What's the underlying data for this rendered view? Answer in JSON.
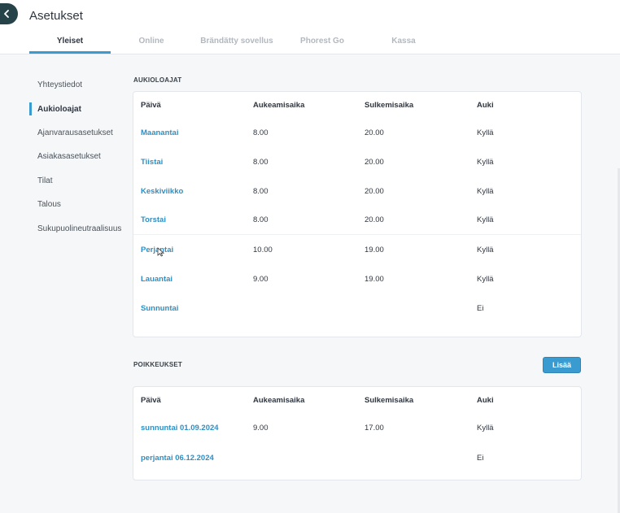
{
  "header": {
    "title": "Asetukset",
    "back_icon": "chevron-left-icon",
    "accent_color": "#3a9bd1",
    "back_color": "#27434a"
  },
  "tabs": [
    {
      "label": "Yleiset",
      "active": true
    },
    {
      "label": "Online",
      "active": false
    },
    {
      "label": "Brändätty sovellus",
      "active": false
    },
    {
      "label": "Phorest Go",
      "active": false
    },
    {
      "label": "Kassa",
      "active": false
    }
  ],
  "sidebar": {
    "items": [
      {
        "label": "Yhteystiedot",
        "active": false
      },
      {
        "label": "Aukioloajat",
        "active": true
      },
      {
        "label": "Ajanvarausasetukset",
        "active": false
      },
      {
        "label": "Asiakasasetukset",
        "active": false
      },
      {
        "label": "Tilat",
        "active": false
      },
      {
        "label": "Talous",
        "active": false
      },
      {
        "label": "Sukupuolineutraalisuus",
        "active": false
      }
    ]
  },
  "opening_hours": {
    "title": "AUKIOLOAJAT",
    "columns": [
      "Päivä",
      "Aukeamisaika",
      "Sulkemisaika",
      "Auki"
    ],
    "rows": [
      {
        "day": "Maanantai",
        "open": "8.00",
        "close": "20.00",
        "is_open": "Kyllä"
      },
      {
        "day": "Tiistai",
        "open": "8.00",
        "close": "20.00",
        "is_open": "Kyllä"
      },
      {
        "day": "Keskiviikko",
        "open": "8.00",
        "close": "20.00",
        "is_open": "Kyllä"
      },
      {
        "day": "Torstai",
        "open": "8.00",
        "close": "20.00",
        "is_open": "Kyllä"
      },
      {
        "day": "Perjantai",
        "open": "10.00",
        "close": "19.00",
        "is_open": "Kyllä"
      },
      {
        "day": "Lauantai",
        "open": "9.00",
        "close": "19.00",
        "is_open": "Kyllä"
      },
      {
        "day": "Sunnuntai",
        "open": "",
        "close": "",
        "is_open": "Ei"
      }
    ]
  },
  "exceptions": {
    "title": "POIKKEUKSET",
    "add_label": "Lisää",
    "columns": [
      "Päivä",
      "Aukeamisaika",
      "Sulkemisaika",
      "Auki"
    ],
    "rows": [
      {
        "day": "sunnuntai 01.09.2024",
        "open": "9.00",
        "close": "17.00",
        "is_open": "Kyllä"
      },
      {
        "day": "perjantai 06.12.2024",
        "open": "",
        "close": "",
        "is_open": "Ei"
      }
    ]
  }
}
